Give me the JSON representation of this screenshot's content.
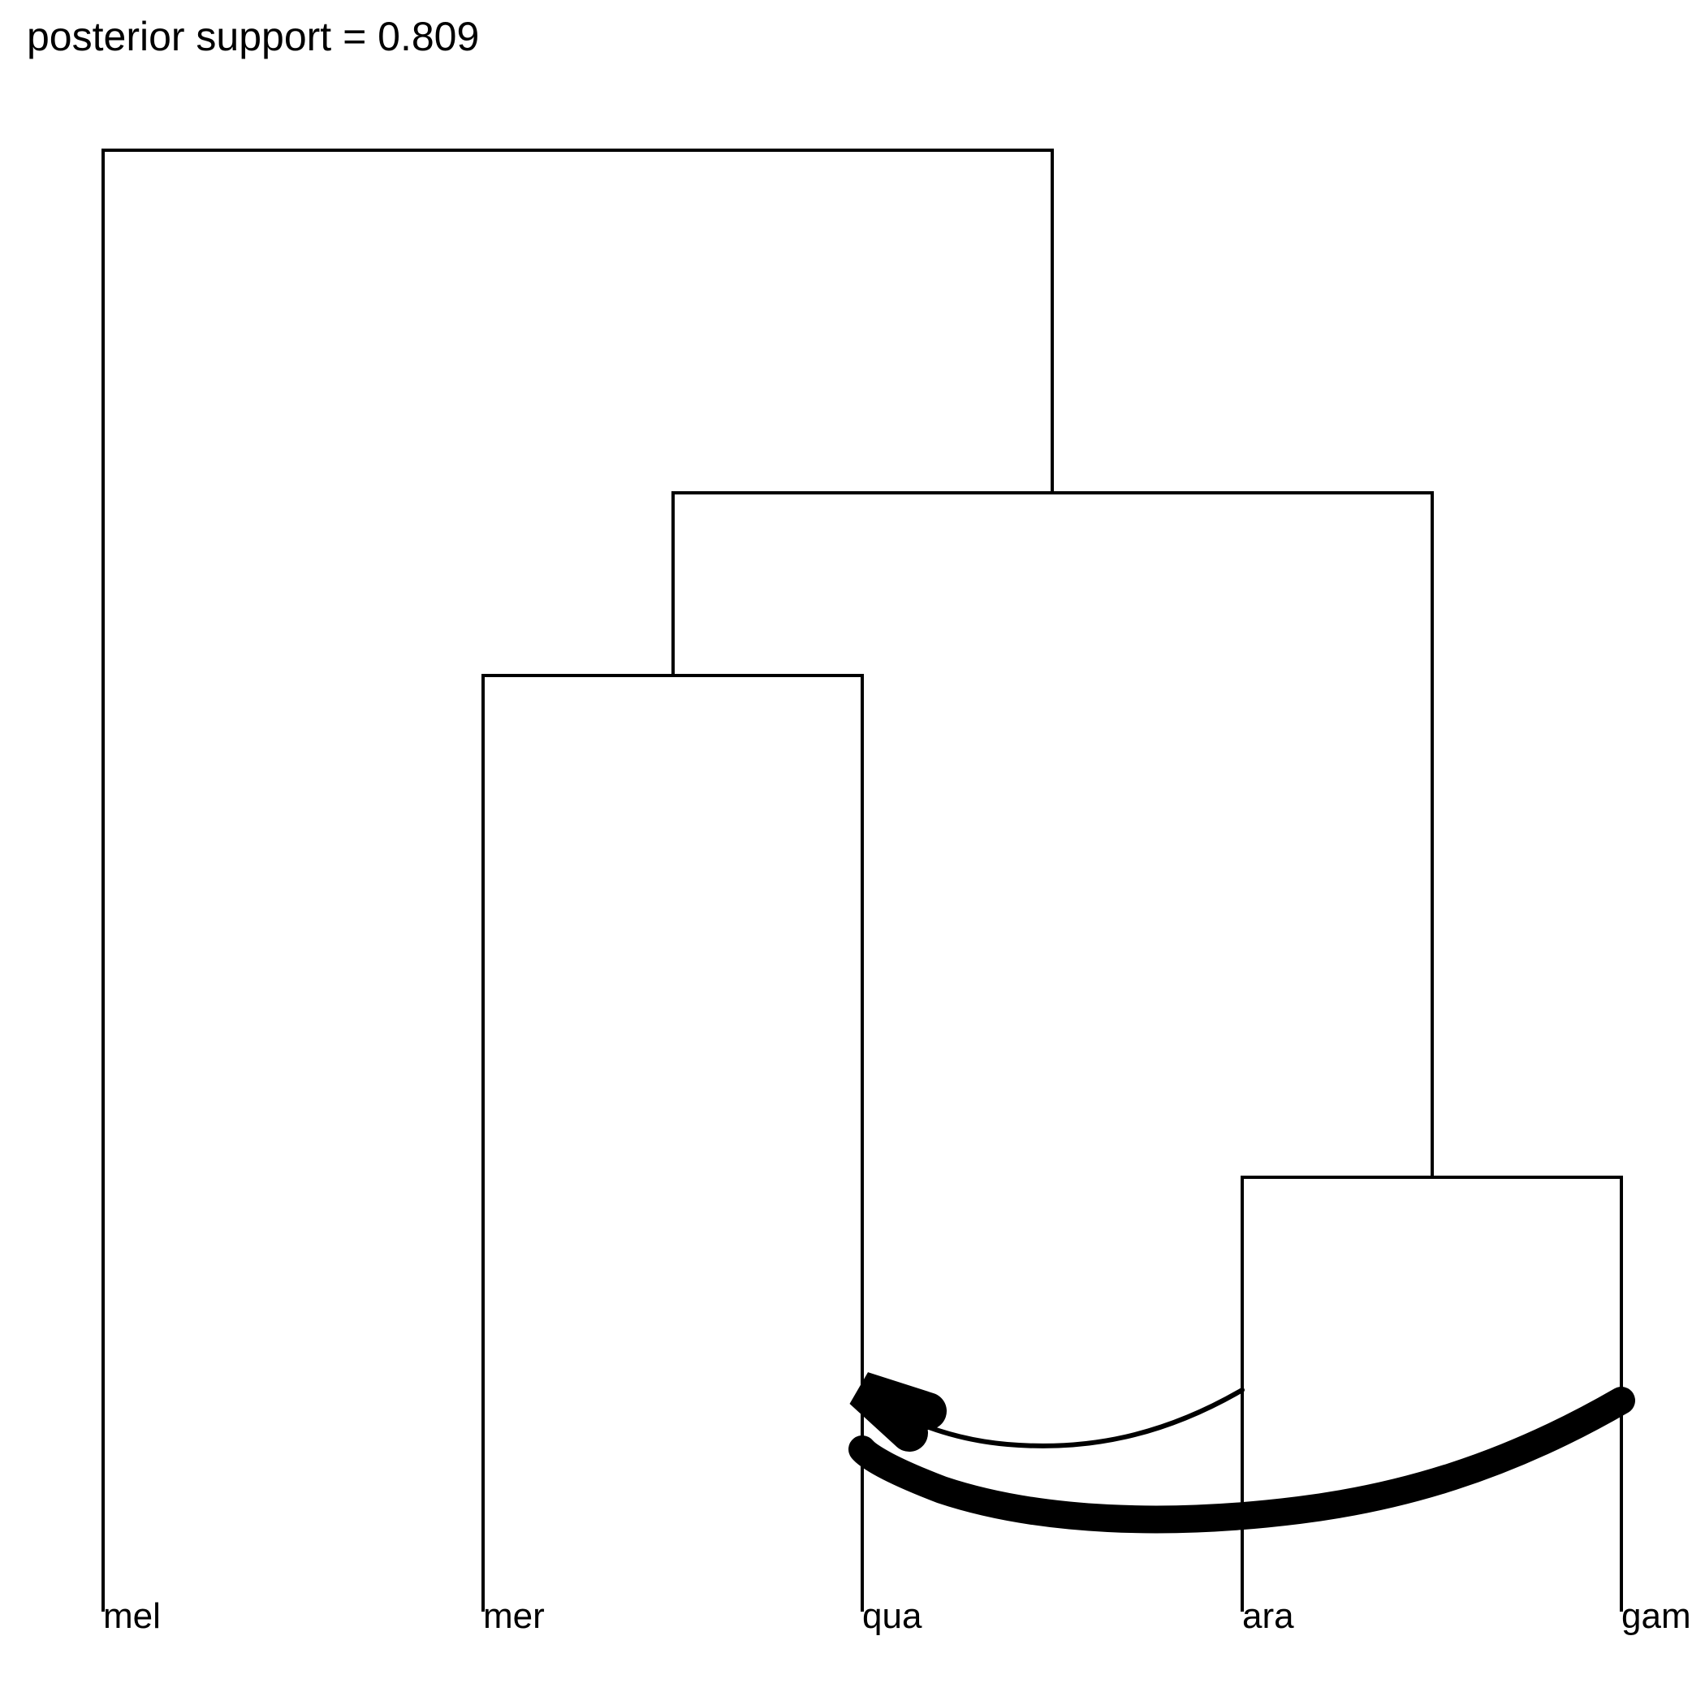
{
  "title": "posterior support = 0.809",
  "taxa": [
    "mel",
    "mer",
    "qua",
    "ara",
    "gam"
  ],
  "tree": {
    "nodes": [
      {
        "id": "root",
        "children": [
          "mel",
          "n1"
        ],
        "height": 1.0
      },
      {
        "id": "n1",
        "children": [
          "n2",
          "n3"
        ],
        "height": 0.76
      },
      {
        "id": "n2",
        "children": [
          "mer",
          "qua"
        ],
        "height": 0.63
      },
      {
        "id": "n3",
        "children": [
          "ara",
          "gam"
        ],
        "height": 0.28
      }
    ]
  },
  "introgression": [
    {
      "from": "ara",
      "to": "qua",
      "weight": "thin"
    },
    {
      "from": "gam",
      "to": "qua",
      "weight": "thick"
    }
  ],
  "colors": {
    "line": "#000000",
    "background": "#ffffff"
  }
}
